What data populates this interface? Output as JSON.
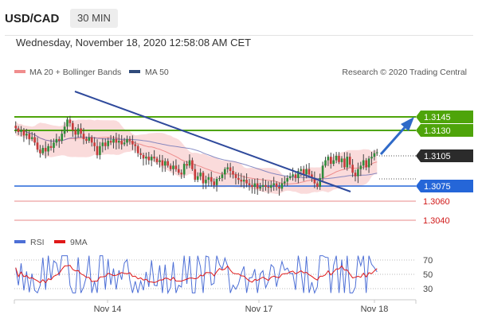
{
  "header": {
    "pair": "USD/CAD",
    "timeframe": "30 MIN",
    "datetime": "Wednesday, November 18, 2020 12:58:08 AM CET"
  },
  "legend": {
    "bollinger": "MA 20 + Bollinger Bands",
    "ma50": "MA 50",
    "credit": "Research © 2020 Trading Central"
  },
  "rsi_legend": {
    "rsi": "RSI",
    "ma": "9MA"
  },
  "colors": {
    "resistance": "#4ea40a",
    "support": "#2566d8",
    "minor_support": "#e88a8a",
    "price": "#2b2b2b",
    "trend": "#2f4a9c",
    "band": "#f8cfcf"
  },
  "chart_data": {
    "type": "candlestick",
    "instrument": "USD/CAD",
    "timeframe": "30 MIN",
    "x_tick_labels": [
      "Nov 14",
      "Nov 17",
      "Nov 18"
    ],
    "price_levels": [
      {
        "value": "1.3145",
        "kind": "resistance"
      },
      {
        "value": "1.3130",
        "kind": "resistance"
      },
      {
        "value": "1.3105",
        "kind": "current"
      },
      {
        "value": "1.3075",
        "kind": "support"
      },
      {
        "value": "1.3060",
        "kind": "minor"
      },
      {
        "value": "1.3040",
        "kind": "minor"
      }
    ],
    "price_range": [
      1.3035,
      1.317
    ],
    "closes": [
      1.3132,
      1.3128,
      1.313,
      1.3124,
      1.3126,
      1.312,
      1.3122,
      1.3116,
      1.3108,
      1.3104,
      1.311,
      1.3106,
      1.3112,
      1.311,
      1.3116,
      1.312,
      1.3118,
      1.3126,
      1.3134,
      1.3142,
      1.3138,
      1.313,
      1.3125,
      1.3132,
      1.3126,
      1.312,
      1.3118,
      1.3122,
      1.3116,
      1.3112,
      1.3102,
      1.3112,
      1.3116,
      1.3112,
      1.3118,
      1.3116,
      1.312,
      1.3116,
      1.3118,
      1.3114,
      1.3116,
      1.312,
      1.3118,
      1.3114,
      1.3112,
      1.3104,
      1.3102,
      1.3098,
      1.31,
      1.3096,
      1.31,
      1.3098,
      1.3094,
      1.3096,
      1.309,
      1.3095,
      1.309,
      1.3086,
      1.309,
      1.3086,
      1.3082,
      1.308,
      1.3092,
      1.309,
      1.3096,
      1.3086,
      1.3074,
      1.3078,
      1.3082,
      1.307,
      1.3074,
      1.3077,
      1.3072,
      1.3068,
      1.3075,
      1.3076,
      1.308,
      1.3086,
      1.3088,
      1.3084,
      1.308,
      1.3076,
      1.3074,
      1.3072,
      1.3074,
      1.307,
      1.3068,
      1.3066,
      1.307,
      1.3064,
      1.3066,
      1.3068,
      1.3066,
      1.3065,
      1.3068,
      1.307,
      1.3066,
      1.3064,
      1.307,
      1.3072,
      1.3076,
      1.3078,
      1.308,
      1.3076,
      1.3084,
      1.3086,
      1.308,
      1.3086,
      1.308,
      1.3076,
      1.307,
      1.3066,
      1.3076,
      1.309,
      1.3096,
      1.31,
      1.3092,
      1.3096,
      1.3101,
      1.3094,
      1.3098,
      1.3088,
      1.31,
      1.3091,
      1.3082,
      1.3078,
      1.3086,
      1.309,
      1.3096,
      1.3088,
      1.3098,
      1.31,
      1.3104,
      1.3105
    ],
    "rsi": {
      "range": [
        20,
        80
      ],
      "ticks": [
        "70",
        "50",
        "30"
      ]
    }
  }
}
